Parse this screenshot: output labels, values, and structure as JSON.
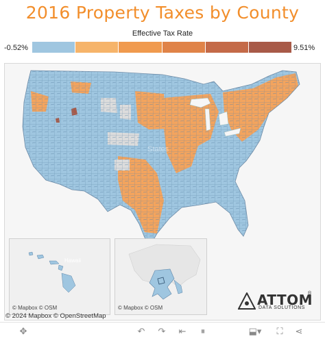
{
  "title": "2016 Property Taxes by County",
  "legend": {
    "title": "Effective Tax Rate",
    "min_label": "-0.52%",
    "max_label": "9.51%",
    "colors": [
      "#9fc6e0",
      "#f6b46a",
      "#f09a4e",
      "#e08348",
      "#c46a48",
      "#a85a48"
    ]
  },
  "map": {
    "colors": {
      "low": "#9fc6e0",
      "mid": "#f3a45e",
      "high": "#a85a48",
      "no_data": "#dcdcdc",
      "background": "#f6f6f6"
    },
    "overlay_labels": {
      "hawaii": "Hawaii",
      "states": "States"
    },
    "insets": {
      "hawaii_attribution": "© Mapbox  © OSM",
      "alaska_attribution": "© Mapbox  © OSM"
    },
    "attribution": "© 2024 Mapbox  © OpenStreetMap"
  },
  "logo": {
    "name": "ATTOM",
    "subtitle": "DATA SOLUTIONS",
    "registered": "®"
  },
  "toolbar": {
    "icons": [
      "move-icon",
      "undo-icon",
      "redo-icon",
      "revert-icon",
      "pause-icon",
      "download-icon",
      "fullscreen-icon",
      "share-icon"
    ]
  }
}
